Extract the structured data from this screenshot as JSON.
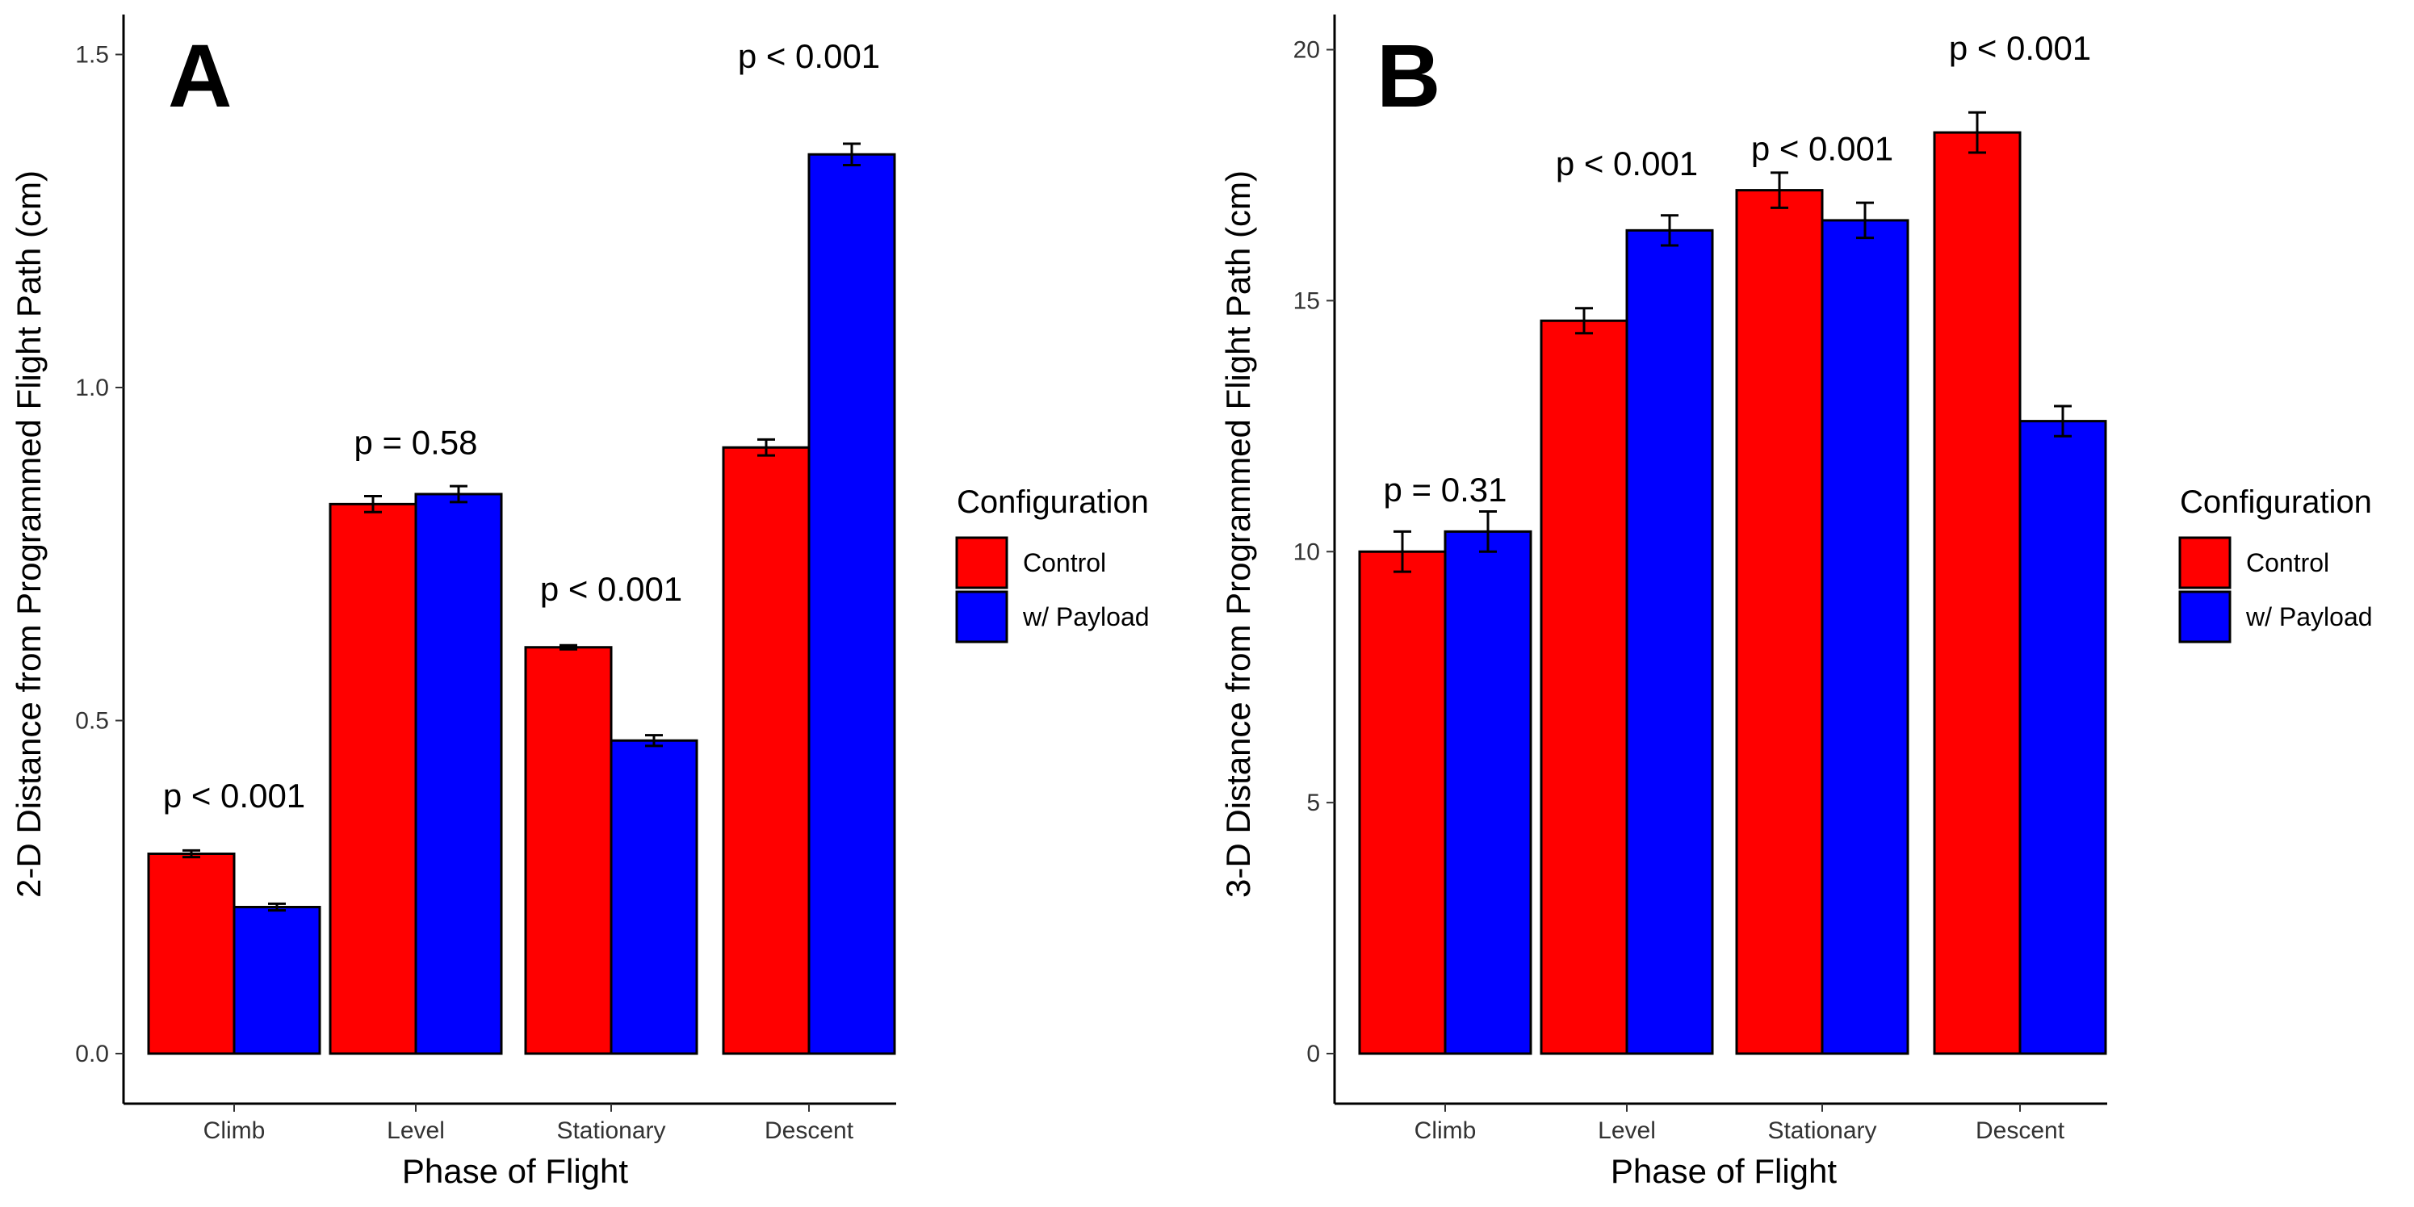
{
  "chart_data": [
    {
      "panel_label": "A",
      "type": "bar",
      "title": "",
      "xlabel": "Phase of Flight",
      "ylabel": "2-D Distance from Programmed Flight Path (cm)",
      "categories": [
        "Climb",
        "Level",
        "Stationary",
        "Descent"
      ],
      "ylim": [
        0,
        1.56
      ],
      "yticks": [
        0.0,
        0.5,
        1.0,
        1.5
      ],
      "ytick_labels": [
        "0.0",
        "0.5",
        "1.0",
        "1.5"
      ],
      "series": [
        {
          "name": "Control",
          "values": [
            0.3,
            0.825,
            0.61,
            0.91
          ],
          "errors": [
            0.005,
            0.012,
            0.003,
            0.012
          ]
        },
        {
          "name": "w/ Payload",
          "values": [
            0.22,
            0.84,
            0.47,
            1.35
          ],
          "errors": [
            0.005,
            0.012,
            0.008,
            0.016
          ]
        }
      ],
      "annotations": [
        {
          "category": "Climb",
          "text": "p < 0.001",
          "y": 0.37
        },
        {
          "category": "Level",
          "text": "p = 0.58",
          "y": 0.9
        },
        {
          "category": "Stationary",
          "text": "p < 0.001",
          "y": 0.68
        },
        {
          "category": "Descent",
          "text": "p < 0.001",
          "y": 1.48
        }
      ]
    },
    {
      "panel_label": "B",
      "type": "bar",
      "title": "",
      "xlabel": "Phase of Flight",
      "ylabel": "3-D Distance from Programmed Flight Path (cm)",
      "categories": [
        "Climb",
        "Level",
        "Stationary",
        "Descent"
      ],
      "ylim": [
        0,
        20.7
      ],
      "yticks": [
        0,
        5,
        10,
        15,
        20
      ],
      "ytick_labels": [
        "0",
        "5",
        "10",
        "15",
        "20"
      ],
      "series": [
        {
          "name": "Control",
          "values": [
            10.0,
            14.6,
            17.2,
            18.35
          ],
          "errors": [
            0.4,
            0.25,
            0.35,
            0.4
          ]
        },
        {
          "name": "w/ Payload",
          "values": [
            10.4,
            16.4,
            16.6,
            12.6
          ],
          "errors": [
            0.4,
            0.3,
            0.35,
            0.3
          ]
        }
      ],
      "annotations": [
        {
          "category": "Climb",
          "text": "p = 0.31",
          "y": 11.0
        },
        {
          "category": "Level",
          "text": "p < 0.001",
          "y": 17.5
        },
        {
          "category": "Stationary",
          "text": "p < 0.001",
          "y": 17.8
        },
        {
          "category": "Descent",
          "text": "p < 0.001",
          "y": 19.8
        }
      ]
    }
  ],
  "legend": {
    "title": "Configuration",
    "items": [
      {
        "label": "Control",
        "color": "#ff0000"
      },
      {
        "label": "w/ Payload",
        "color": "#0000ff"
      }
    ]
  },
  "colors": {
    "control": "#ff0000",
    "payload": "#0000ff",
    "outline": "#000000"
  }
}
